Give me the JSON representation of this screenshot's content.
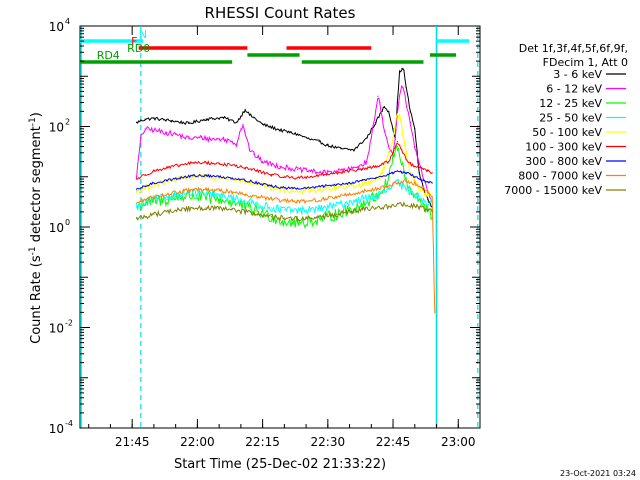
{
  "chart_data": {
    "type": "line",
    "title": "RHESSI Count Rates",
    "xlabel": "Start Time (25-Dec-02 21:33:22)",
    "ylabel_main": "Count Rate (s",
    "ylabel_sup1": "-1",
    "ylabel_mid": " detector segment",
    "ylabel_sup2": "-1",
    "ylabel_end": ")",
    "x_unit": "minutes after 21:33:22",
    "xlim": [
      0,
      92
    ],
    "ylog": true,
    "ylim": [
      0.0001,
      10000
    ],
    "x_ticks": [
      {
        "t": 12,
        "label": "21:45"
      },
      {
        "t": 27,
        "label": "22:00"
      },
      {
        "t": 42,
        "label": "22:15"
      },
      {
        "t": 57,
        "label": "22:30"
      },
      {
        "t": 72,
        "label": "22:45"
      },
      {
        "t": 87,
        "label": "23:00"
      }
    ],
    "y_ticks": [
      {
        "exp": 4,
        "label": "10",
        "sup": "4"
      },
      {
        "exp": 2,
        "label": "10",
        "sup": "2"
      },
      {
        "exp": 0,
        "label": "10",
        "sup": "0"
      },
      {
        "exp": -2,
        "label": "10",
        "sup": "-2"
      },
      {
        "exp": -4,
        "label": "10",
        "sup": "-4"
      }
    ],
    "legend_header": [
      "Det 1f,3f,4f,5f,6f,9f,",
      "FDecim 1, Att 0"
    ],
    "legend_position": "top-right",
    "series": [
      {
        "name": "3 - 6 keV",
        "color": "#000000",
        "x": [
          13,
          15,
          17,
          21,
          25,
          29,
          33,
          36,
          37,
          38,
          39,
          40,
          42,
          46,
          50,
          53,
          55,
          57,
          60,
          63,
          66,
          68,
          70,
          71,
          72,
          72.5,
          73,
          73.5,
          74,
          74.5,
          75,
          76,
          77,
          78,
          79,
          80,
          81
        ],
        "y": [
          120,
          140,
          145,
          130,
          115,
          140,
          150,
          120,
          160,
          220,
          170,
          150,
          110,
          85,
          70,
          55,
          50,
          42,
          36,
          34,
          60,
          120,
          250,
          200,
          90,
          55,
          300,
          1200,
          1400,
          1300,
          600,
          200,
          90,
          12,
          6,
          3.5,
          2.5
        ]
      },
      {
        "name": "6 - 12 keV",
        "color": "#ff00ff",
        "x": [
          13,
          14,
          15,
          17,
          20,
          22,
          25,
          28,
          30,
          33,
          35,
          36,
          37,
          37.5,
          38,
          39,
          40,
          42,
          46,
          50,
          53,
          56,
          59,
          62,
          64,
          66,
          67,
          68,
          68.5,
          69,
          69.5,
          70,
          71,
          72,
          72.5,
          73,
          73.5,
          74,
          74.5,
          75,
          76,
          77,
          78,
          79,
          80,
          81
        ],
        "y": [
          10,
          60,
          90,
          85,
          75,
          70,
          58,
          60,
          56,
          56,
          50,
          45,
          90,
          110,
          75,
          35,
          28,
          20,
          16,
          14,
          13,
          12,
          13,
          14,
          16,
          20,
          60,
          200,
          400,
          300,
          150,
          80,
          40,
          25,
          60,
          180,
          400,
          600,
          500,
          300,
          120,
          40,
          18,
          9,
          5,
          3
        ]
      },
      {
        "name": "12 - 25 keV",
        "color": "#00ff00",
        "x": [
          13,
          15,
          17,
          20,
          23,
          26,
          29,
          32,
          35,
          38,
          41,
          44,
          47,
          50,
          53,
          56,
          59,
          62,
          65,
          68,
          70,
          71,
          72,
          73,
          74,
          75,
          76,
          77,
          78,
          79,
          80,
          81
        ],
        "y": [
          2.5,
          3,
          3.2,
          3.5,
          4,
          4.2,
          3.8,
          3.5,
          3.2,
          2.5,
          2,
          1.6,
          1.3,
          1.2,
          1.3,
          1.5,
          1.8,
          2.2,
          2.8,
          4,
          6,
          10,
          25,
          40,
          18,
          8,
          5,
          4,
          3.5,
          3,
          2,
          1.5
        ]
      },
      {
        "name": "25 - 50 keV",
        "color": "#00ffff",
        "x": [
          13,
          15,
          17,
          20,
          23,
          26,
          29,
          32,
          35,
          38,
          41,
          44,
          47,
          50,
          53,
          56,
          59,
          62,
          65,
          68,
          70,
          72,
          73,
          74,
          75,
          76,
          77,
          78,
          79,
          80,
          81
        ],
        "y": [
          2.5,
          3,
          3.5,
          4,
          4.5,
          4.8,
          4.6,
          4.2,
          3.8,
          3.3,
          2.8,
          2.4,
          2.2,
          2.1,
          2.2,
          2.4,
          2.7,
          3.1,
          3.6,
          4.2,
          5,
          6.5,
          8,
          6.5,
          5.5,
          5,
          4.5,
          4,
          3.6,
          3.2,
          3
        ]
      },
      {
        "name": "50 - 100 keV",
        "color": "#ffff00",
        "x": [
          13,
          15,
          17,
          20,
          23,
          26,
          29,
          32,
          35,
          38,
          41,
          44,
          47,
          50,
          53,
          56,
          59,
          62,
          65,
          68,
          69,
          70,
          71,
          72,
          72.5,
          73,
          73.5,
          74,
          75,
          76,
          77,
          78,
          79,
          80,
          81
        ],
        "y": [
          5,
          6,
          7,
          8,
          9,
          10,
          10,
          9.5,
          9,
          8,
          7,
          6,
          5.5,
          5.2,
          5.3,
          5.6,
          6,
          6.5,
          7,
          9,
          10,
          15,
          30,
          60,
          120,
          180,
          160,
          100,
          30,
          12,
          8,
          6,
          5,
          4.5,
          4
        ]
      },
      {
        "name": "100 - 300 keV",
        "color": "#ff0000",
        "x": [
          13,
          15,
          17,
          20,
          23,
          26,
          29,
          32,
          35,
          38,
          41,
          44,
          47,
          50,
          53,
          56,
          59,
          62,
          65,
          68,
          71,
          72,
          73,
          74,
          75,
          76,
          77,
          78,
          79,
          80,
          81
        ],
        "y": [
          9,
          11,
          13,
          15,
          17,
          19,
          19,
          18,
          17,
          15,
          13,
          11,
          10,
          9.5,
          10,
          11,
          12,
          13,
          14,
          16,
          20,
          30,
          50,
          35,
          22,
          18,
          16,
          15,
          14,
          13,
          12
        ]
      },
      {
        "name": "300 - 800 keV",
        "color": "#0000ff",
        "x": [
          13,
          15,
          17,
          20,
          23,
          26,
          29,
          32,
          35,
          38,
          41,
          44,
          47,
          50,
          53,
          56,
          59,
          62,
          65,
          68,
          71,
          72,
          73,
          74,
          75,
          76,
          77,
          78,
          79,
          80,
          81
        ],
        "y": [
          5.5,
          6.5,
          7.5,
          8.5,
          9.5,
          10.5,
          10.5,
          10,
          9.5,
          8.5,
          7.5,
          6.5,
          6,
          5.8,
          6,
          6.5,
          7,
          7.5,
          8.5,
          9.5,
          11,
          12,
          13,
          12.5,
          12,
          11,
          10,
          9,
          8.5,
          8,
          7.5
        ]
      },
      {
        "name": "800 - 7000 keV",
        "color": "#ff8000",
        "x": [
          13,
          15,
          17,
          20,
          23,
          26,
          29,
          32,
          35,
          38,
          41,
          44,
          47,
          50,
          53,
          56,
          59,
          62,
          65,
          68,
          71,
          73,
          75,
          77,
          79,
          80,
          81,
          81.3,
          81.6
        ],
        "y": [
          3,
          3.5,
          4,
          4.5,
          5,
          5.5,
          5.5,
          5.3,
          5,
          4.5,
          4,
          3.6,
          3.3,
          3.2,
          3.3,
          3.6,
          4,
          4.5,
          5,
          5.8,
          6.5,
          7.5,
          8.2,
          7.5,
          6,
          5,
          4,
          0.3,
          0.02
        ]
      },
      {
        "name": "7000 - 15000 keV",
        "color": "#808000",
        "x": [
          13,
          15,
          17,
          20,
          23,
          26,
          29,
          32,
          35,
          38,
          41,
          44,
          47,
          50,
          53,
          56,
          59,
          62,
          65,
          68,
          71,
          74,
          77,
          80,
          81
        ],
        "y": [
          1.5,
          1.6,
          1.8,
          2,
          2.2,
          2.4,
          2.4,
          2.3,
          2.2,
          2,
          1.8,
          1.6,
          1.5,
          1.45,
          1.5,
          1.6,
          1.8,
          2,
          2.2,
          2.4,
          2.6,
          2.8,
          2.6,
          2.2,
          2
        ]
      }
    ],
    "state_bars": [
      {
        "name": "N",
        "color": "#00ffff",
        "level": 3,
        "label_t": 14.5,
        "segments": [
          [
            0,
            14.5
          ],
          [
            82,
            89.5
          ]
        ]
      },
      {
        "name": "F",
        "color": "#ff0000",
        "level": 2,
        "label_t": 12.5,
        "segments": [
          [
            13.5,
            38.5
          ],
          [
            47.5,
            67
          ]
        ]
      },
      {
        "name": "RD0",
        "color": "#00a000",
        "level": 1,
        "label_t": 13.5,
        "segments": [
          [
            38.5,
            50.5
          ],
          [
            80.5,
            86.5
          ]
        ]
      },
      {
        "name": "RD4",
        "color": "#00a000",
        "level": 0,
        "label_t": 6.5,
        "segments": [
          [
            0,
            35
          ],
          [
            51,
            79
          ]
        ]
      }
    ],
    "vlines_solid": [
      0,
      82
    ],
    "vlines_dashed": [
      14,
      91.5
    ],
    "footer_date": "23-Oct-2021 03:24"
  }
}
